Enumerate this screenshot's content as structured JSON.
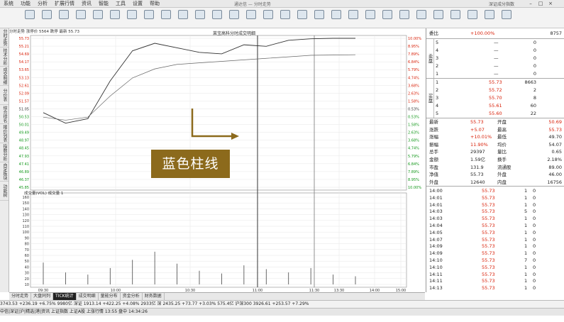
{
  "menu": {
    "items": [
      "系统",
      "功能",
      "分析",
      "扩展行情",
      "资讯",
      "智能",
      "工具",
      "设置",
      "帮助"
    ],
    "window_title": "通达信 — 分时走势",
    "right_text": "深证成分指数",
    "account": "yellow"
  },
  "toolbar": {
    "buttons": [
      "",
      "",
      "",
      "",
      "",
      "",
      "",
      "",
      "",
      "",
      "",
      "",
      "",
      "",
      "",
      "",
      "",
      "",
      "",
      "",
      "",
      "",
      "",
      "",
      "",
      "",
      "",
      "",
      ""
    ],
    "labels": [
      "",
      "",
      "",
      "",
      "",
      "",
      "",
      "",
      "",
      "",
      "",
      "",
      "",
      "",
      "",
      "",
      "",
      "",
      "",
      "",
      "",
      "",
      "",
      "",
      "",
      "",
      "",
      "",
      ""
    ]
  },
  "left_tabs": [
    "分时走势",
    "技术分析",
    "成交明细",
    "分价表",
    "综合排名",
    "报价列表",
    "指数分析",
    "自定板块",
    "功能树"
  ],
  "chart": {
    "info_line": "分时走势  涨停价 5564  跌停  最新 55.73",
    "stock_title": "莱宝高科分时成交明细",
    "sub_info": "成交量(VOL) 成交量  1",
    "price_ticks": [
      "55.73",
      "55.21",
      "54.69",
      "54.17",
      "53.65",
      "53.13",
      "52.61",
      "52.09",
      "51.57",
      "51.05",
      "50.53",
      "50.01",
      "49.49",
      "48.97",
      "48.45",
      "47.93",
      "47.41",
      "46.89",
      "46.37",
      "45.85"
    ],
    "pct_ticks": [
      "10.00%",
      "8.95%",
      "7.89%",
      "6.84%",
      "5.79%",
      "4.74%",
      "3.68%",
      "2.63%",
      "1.58%",
      "0.53%",
      "0.53%",
      "1.58%",
      "2.63%",
      "3.68%",
      "4.74%",
      "5.79%",
      "6.84%",
      "7.89%",
      "8.95%",
      "10.00%"
    ],
    "time_ticks": [
      "09:30",
      "10:00",
      "10:30",
      "11:00",
      "11:30",
      "13:30",
      "14:00",
      "15:00"
    ],
    "vol_ticks": [
      "160",
      "150",
      "140",
      "130",
      "120",
      "110",
      "100",
      "90",
      "80",
      "70",
      "60",
      "50",
      "40",
      "30",
      "20",
      "10"
    ],
    "callout_text": "蓝色柱线",
    "line_color": "#e6e6e6",
    "accent_color": "#8c6a1c"
  },
  "chart_data": {
    "type": "line",
    "title": "",
    "xlabel": "",
    "ylabel": "",
    "x": [
      "09:30",
      "09:40",
      "09:50",
      "10:00",
      "10:10",
      "10:20",
      "10:30",
      "10:40",
      "10:50",
      "11:00",
      "11:10",
      "11:20",
      "11:30",
      "13:00",
      "13:10"
    ],
    "ylim": [
      45.85,
      55.73
    ],
    "series": [
      {
        "name": "",
        "values": [
          50.8,
          50.1,
          50.4,
          52.9,
          54.9,
          55.4,
          55.1,
          54.8,
          54.7,
          55.3,
          55.2,
          55.6,
          55.7,
          55.73,
          55.73
        ]
      },
      {
        "name": "",
        "values": [
          50.5,
          50.3,
          50.5,
          51.9,
          53.1,
          53.7,
          54.0,
          54.1,
          54.2,
          54.3,
          54.4,
          54.5,
          54.6,
          54.62,
          54.64
        ]
      }
    ],
    "volume": [
      40,
      22,
      18,
      30,
      45,
      60,
      38,
      25,
      20,
      35,
      28,
      22,
      30,
      18,
      15
    ]
  },
  "right_panel": {
    "header": {
      "label": "委比",
      "value": "+100.00%",
      "right": "8757"
    },
    "sell_label": "卖盘",
    "buy_label": "买盘",
    "sell": [
      {
        "lvl": "5",
        "price": "—",
        "vol": "0"
      },
      {
        "lvl": "4",
        "price": "—",
        "vol": "0"
      },
      {
        "lvl": "3",
        "price": "—",
        "vol": "0"
      },
      {
        "lvl": "2",
        "price": "—",
        "vol": "0"
      },
      {
        "lvl": "1",
        "price": "—",
        "vol": "0"
      }
    ],
    "buy": [
      {
        "lvl": "1",
        "price": "55.73",
        "vol": "8663"
      },
      {
        "lvl": "2",
        "price": "55.72",
        "vol": "2"
      },
      {
        "lvl": "3",
        "price": "55.70",
        "vol": "8"
      },
      {
        "lvl": "4",
        "price": "55.61",
        "vol": "60"
      },
      {
        "lvl": "5",
        "price": "55.60",
        "vol": "22"
      }
    ],
    "stats": [
      [
        "最新",
        "55.73",
        "开盘",
        "50.69"
      ],
      [
        "涨跌",
        "+5.07",
        "最高",
        "55.73"
      ],
      [
        "涨幅",
        "+10.01%",
        "最低",
        "49.70"
      ],
      [
        "振幅",
        "11.90%",
        "均价",
        "54.07"
      ],
      [
        "总手",
        "29397",
        "量比",
        "0.65"
      ],
      [
        "金额",
        "1.59亿",
        "换手",
        "2.18%"
      ],
      [
        "市盈",
        "131.9",
        "流通股",
        "89.00"
      ],
      [
        "净值",
        "55.73",
        "外盘",
        "46.00"
      ],
      [
        "外盘",
        "12640",
        "内盘",
        "16756"
      ]
    ],
    "ticks": [
      [
        "14:00",
        "55.73",
        "1",
        "0"
      ],
      [
        "14:01",
        "55.73",
        "1",
        "0"
      ],
      [
        "14:01",
        "55.73",
        "1",
        "0"
      ],
      [
        "14:03",
        "55.73",
        "5",
        "0"
      ],
      [
        "14:03",
        "55.73",
        "1",
        "0"
      ],
      [
        "14:04",
        "55.73",
        "1",
        "0"
      ],
      [
        "14:05",
        "55.73",
        "1",
        "0"
      ],
      [
        "14:07",
        "55.73",
        "1",
        "0"
      ],
      [
        "14:09",
        "55.73",
        "1",
        "0"
      ],
      [
        "14:09",
        "55.73",
        "1",
        "0"
      ],
      [
        "14:10",
        "55.73",
        "7",
        "0"
      ],
      [
        "14:10",
        "55.73",
        "1",
        "0"
      ],
      [
        "14:11",
        "55.73",
        "1",
        "0"
      ],
      [
        "14:11",
        "55.73",
        "1",
        "0"
      ],
      [
        "14:13",
        "55.73",
        "1",
        "0"
      ]
    ]
  },
  "bottom_tabs": [
    "分时走势",
    "大盘同列",
    "TICK统计",
    "成交明细",
    "量能分布",
    "资金分析",
    "财务数据"
  ],
  "index_bar": "3743.53  +236.19  +6.75%  9980亿 深证  1913.14  +422.25  +4.08%  2933亿 深  2435.25  +73.77  +3.03%  575.4亿 沪深300  3926.61  +253.57  +7.29%",
  "status_bar": "中信|深证|沪|精选|港|资讯  上证指数  上证A股  上涨行情  13:55  盘中  14:34:26"
}
